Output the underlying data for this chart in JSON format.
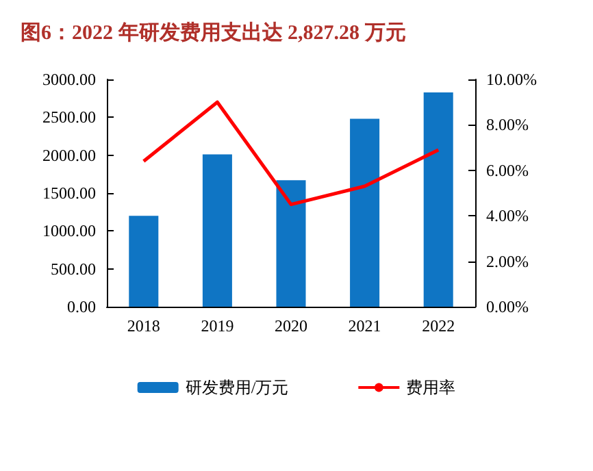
{
  "chart_data": {
    "type": "bar",
    "title": "图6：2022 年研发费用支出达 2,827.28 万元",
    "categories": [
      "2018",
      "2019",
      "2020",
      "2021",
      "2022"
    ],
    "series": [
      {
        "name": "研发费用/万元",
        "color": "#0f75c4",
        "values": [
          1200,
          2010,
          1670,
          2480,
          2827.28
        ]
      },
      {
        "name": "费用率",
        "type": "line",
        "axis": "y2",
        "color": "#ff0000",
        "values": [
          6.4,
          9.0,
          4.5,
          5.3,
          6.9
        ]
      }
    ],
    "ylim": [
      0,
      3000
    ],
    "yticks": [
      {
        "value": 0,
        "label": "0.00"
      },
      {
        "value": 500,
        "label": "500.00"
      },
      {
        "value": 1000,
        "label": "1000.00"
      },
      {
        "value": 1500,
        "label": "1500.00"
      },
      {
        "value": 2000,
        "label": "2000.00"
      },
      {
        "value": 2500,
        "label": "2500.00"
      },
      {
        "value": 3000,
        "label": "3000.00"
      }
    ],
    "y2lim": [
      0,
      10
    ],
    "y2ticks": [
      {
        "value": 0,
        "label": "0.00%"
      },
      {
        "value": 2,
        "label": "2.00%"
      },
      {
        "value": 4,
        "label": "4.00%"
      },
      {
        "value": 6,
        "label": "6.00%"
      },
      {
        "value": 8,
        "label": "8.00%"
      },
      {
        "value": 10,
        "label": "10.00%"
      }
    ],
    "grid": false,
    "legend": "bottom",
    "marker": "none"
  }
}
